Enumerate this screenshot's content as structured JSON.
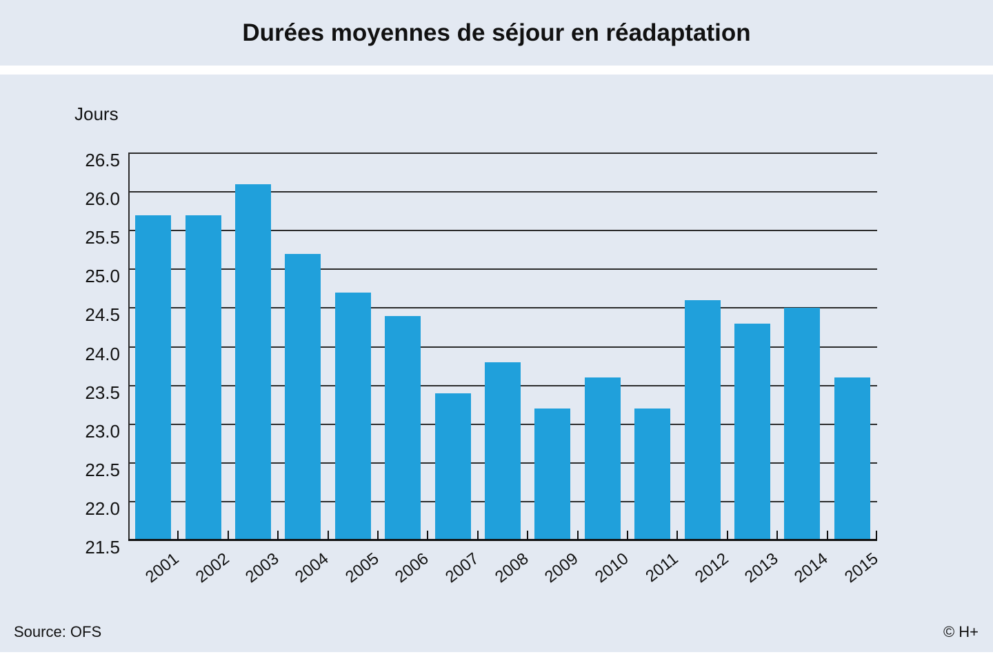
{
  "header": {
    "title": "Durées moyennes de séjour en réadaptation"
  },
  "footer": {
    "source": "Source: OFS",
    "copyright": "© H+"
  },
  "colors": {
    "panel_bg": "#e3e9f2",
    "bar": "#20a0db",
    "grid": "#2b2b2b",
    "axis": "#111111"
  },
  "chart_data": {
    "type": "bar",
    "title": "Durées moyennes de séjour en réadaptation",
    "xlabel": "",
    "ylabel": "Jours",
    "categories": [
      "2001",
      "2002",
      "2003",
      "2004",
      "2005",
      "2006",
      "2007",
      "2008",
      "2009",
      "2010",
      "2011",
      "2012",
      "2013",
      "2014",
      "2015"
    ],
    "values": [
      25.7,
      25.7,
      26.1,
      25.2,
      24.7,
      24.4,
      23.4,
      23.8,
      23.2,
      23.6,
      23.2,
      24.6,
      24.3,
      24.5,
      23.6
    ],
    "ylim": [
      21.5,
      26.5
    ],
    "ytick_step": 0.5,
    "grid": true,
    "legend": null,
    "bar_color": "#20a0db"
  }
}
